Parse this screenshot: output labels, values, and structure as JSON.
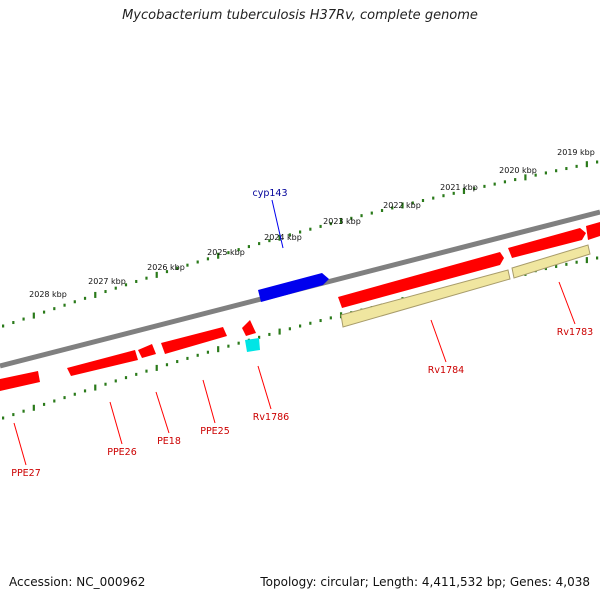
{
  "title": "Mycobacterium tuberculosis H37Rv, complete genome",
  "footer": {
    "accession": "Accession: NC_000962",
    "topology": "Topology: circular; Length: 4,411,532 bp; Genes: 4,038"
  },
  "colors": {
    "backbone": "#808080",
    "tick": "#2a7a1a",
    "cds": "#ff0000",
    "cds_label": "#cc0000",
    "gene_blue": "#0000ee",
    "gene_blue_label": "#000099",
    "cyan": "#00e5e5",
    "pseudo": "#f0e6a0",
    "pseudo_edge": "#a89c6a"
  },
  "scale_labels": [
    "2019 kbp",
    "2020 kbp",
    "2021 kbp",
    "2022 kbp",
    "2023 kbp",
    "2024 kbp",
    "2025 kbp",
    "2026 kbp",
    "2027 kbp",
    "2028 kbp"
  ],
  "genes": [
    {
      "name": "cyp143",
      "color": "blue"
    },
    {
      "name": "Rv1783",
      "color": "red"
    },
    {
      "name": "Rv1784",
      "color": "red"
    },
    {
      "name": "Rv1786",
      "color": "red"
    },
    {
      "name": "PPE25",
      "color": "red"
    },
    {
      "name": "PE18",
      "color": "red"
    },
    {
      "name": "PPE26",
      "color": "red"
    },
    {
      "name": "PPE27",
      "color": "red"
    }
  ]
}
